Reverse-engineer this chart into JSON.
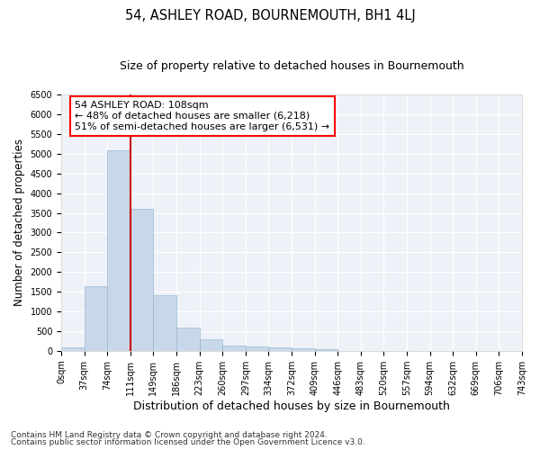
{
  "title": "54, ASHLEY ROAD, BOURNEMOUTH, BH1 4LJ",
  "subtitle": "Size of property relative to detached houses in Bournemouth",
  "xlabel": "Distribution of detached houses by size in Bournemouth",
  "ylabel": "Number of detached properties",
  "bin_labels": [
    "0sqm",
    "37sqm",
    "74sqm",
    "111sqm",
    "149sqm",
    "186sqm",
    "223sqm",
    "260sqm",
    "297sqm",
    "334sqm",
    "372sqm",
    "409sqm",
    "446sqm",
    "483sqm",
    "520sqm",
    "557sqm",
    "594sqm",
    "632sqm",
    "669sqm",
    "706sqm",
    "743sqm"
  ],
  "bar_values": [
    80,
    1640,
    5080,
    3600,
    1400,
    580,
    290,
    140,
    100,
    75,
    55,
    50,
    0,
    0,
    0,
    0,
    0,
    0,
    0,
    0
  ],
  "bar_color": "#c8d8ea",
  "bar_edgecolor": "#9ab8d0",
  "vline_color": "#cc0000",
  "ylim": [
    0,
    6500
  ],
  "yticks": [
    0,
    500,
    1000,
    1500,
    2000,
    2500,
    3000,
    3500,
    4000,
    4500,
    5000,
    5500,
    6000,
    6500
  ],
  "annotation_text": "54 ASHLEY ROAD: 108sqm\n← 48% of detached houses are smaller (6,218)\n51% of semi-detached houses are larger (6,531) →",
  "footer_line1": "Contains HM Land Registry data © Crown copyright and database right 2024.",
  "footer_line2": "Contains public sector information licensed under the Open Government Licence v3.0.",
  "background_color": "#eef2f8",
  "grid_color": "#ffffff",
  "title_fontsize": 10.5,
  "subtitle_fontsize": 9,
  "xlabel_fontsize": 9,
  "ylabel_fontsize": 8.5,
  "tick_fontsize": 7,
  "annotation_fontsize": 8,
  "footer_fontsize": 6.5
}
